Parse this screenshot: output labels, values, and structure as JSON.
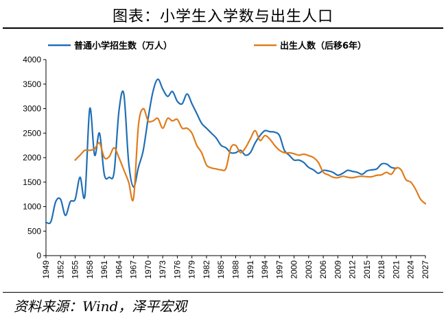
{
  "header": {
    "title": "图表：小学生入学数与出生人口",
    "source": "资料来源：Wind，泽平宏观"
  },
  "chart_data": {
    "type": "line",
    "title": "图表：小学生入学数与出生人口",
    "xlabel": "",
    "ylabel": "",
    "xlim": [
      1949,
      2027
    ],
    "ylim": [
      0,
      4000
    ],
    "yticks": [
      0,
      500,
      1000,
      1500,
      2000,
      2500,
      3000,
      3500,
      4000
    ],
    "xticks": [
      1949,
      1952,
      1955,
      1958,
      1961,
      1964,
      1967,
      1970,
      1973,
      1976,
      1979,
      1982,
      1985,
      1988,
      1991,
      1994,
      1997,
      2000,
      2003,
      2006,
      2009,
      2012,
      2015,
      2018,
      2021,
      2024,
      2027
    ],
    "grid": false,
    "legend_position": "top",
    "series": [
      {
        "name": "普通小学招生数（万人）",
        "color": "#1f6eb5",
        "x": [
          1949,
          1950,
          1951,
          1952,
          1953,
          1954,
          1955,
          1956,
          1957,
          1958,
          1959,
          1960,
          1961,
          1962,
          1963,
          1964,
          1965,
          1966,
          1967,
          1968,
          1969,
          1970,
          1971,
          1972,
          1973,
          1974,
          1975,
          1976,
          1977,
          1978,
          1979,
          1980,
          1981,
          1982,
          1983,
          1984,
          1985,
          1986,
          1987,
          1988,
          1989,
          1990,
          1991,
          1992,
          1993,
          1994,
          1995,
          1996,
          1997,
          1998,
          1999,
          2000,
          2001,
          2002,
          2003,
          2004,
          2005,
          2006,
          2007,
          2008,
          2009,
          2010,
          2011,
          2012,
          2013,
          2014,
          2015,
          2016,
          2017,
          2018,
          2019,
          2020,
          2021
        ],
        "values": [
          680,
          690,
          1100,
          1150,
          820,
          1100,
          1150,
          1600,
          1220,
          3000,
          2050,
          2500,
          1650,
          1600,
          1700,
          2950,
          3300,
          1900,
          1400,
          1800,
          2150,
          2800,
          3350,
          3600,
          3400,
          3250,
          3350,
          3150,
          3100,
          3300,
          3100,
          2900,
          2700,
          2600,
          2500,
          2400,
          2250,
          2200,
          2100,
          2100,
          2150,
          2050,
          2100,
          2300,
          2450,
          2550,
          2530,
          2520,
          2450,
          2150,
          2050,
          1950,
          1950,
          1900,
          1800,
          1750,
          1680,
          1740,
          1730,
          1700,
          1640,
          1680,
          1740,
          1720,
          1700,
          1660,
          1730,
          1750,
          1770,
          1870,
          1870,
          1800,
          1780
        ]
      },
      {
        "name": "出生人数（后移6年）",
        "color": "#e07b1a",
        "x": [
          1955,
          1956,
          1957,
          1958,
          1959,
          1960,
          1961,
          1962,
          1963,
          1964,
          1965,
          1966,
          1967,
          1968,
          1969,
          1970,
          1971,
          1972,
          1973,
          1974,
          1975,
          1976,
          1977,
          1978,
          1979,
          1980,
          1981,
          1982,
          1983,
          1984,
          1985,
          1986,
          1987,
          1988,
          1989,
          1990,
          1991,
          1992,
          1993,
          1994,
          1995,
          1996,
          1997,
          1998,
          1999,
          2000,
          2001,
          2002,
          2003,
          2004,
          2005,
          2006,
          2007,
          2008,
          2009,
          2010,
          2011,
          2012,
          2013,
          2014,
          2015,
          2016,
          2017,
          2018,
          2019,
          2020,
          2021,
          2022,
          2023,
          2024,
          2025,
          2026,
          2027
        ],
        "values": [
          1950,
          2050,
          2150,
          2150,
          2180,
          2300,
          2000,
          2020,
          2200,
          2000,
          1750,
          1500,
          1170,
          2650,
          3000,
          2750,
          2750,
          2800,
          2600,
          2800,
          2750,
          2780,
          2600,
          2600,
          2500,
          2250,
          2100,
          1850,
          1790,
          1770,
          1750,
          1780,
          2200,
          2250,
          2100,
          2200,
          2380,
          2550,
          2350,
          2450,
          2380,
          2250,
          2150,
          2100,
          2100,
          2080,
          2050,
          2070,
          2040,
          2000,
          1900,
          1700,
          1650,
          1600,
          1590,
          1620,
          1600,
          1590,
          1610,
          1620,
          1610,
          1610,
          1640,
          1650,
          1700,
          1660,
          1790,
          1750,
          1550,
          1500,
          1350,
          1150,
          1060
        ]
      }
    ]
  }
}
